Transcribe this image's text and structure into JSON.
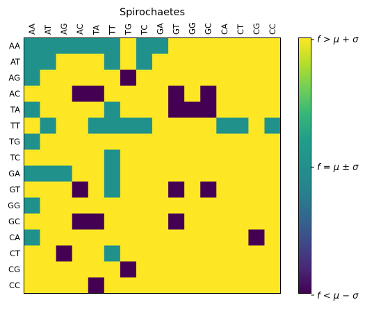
{
  "chart_data": {
    "type": "heatmap",
    "title": "Spirochaetes",
    "x_labels": [
      "AA",
      "AT",
      "AG",
      "AC",
      "TA",
      "TT",
      "TG",
      "TC",
      "GA",
      "GT",
      "GG",
      "GC",
      "CA",
      "CT",
      "CG",
      "CC"
    ],
    "y_labels": [
      "AA",
      "AT",
      "AG",
      "AC",
      "TA",
      "TT",
      "TG",
      "TC",
      "GA",
      "GT",
      "GG",
      "GC",
      "CA",
      "CT",
      "CG",
      "CC"
    ],
    "levels": {
      "low": 0,
      "mid": 1,
      "high": 2
    },
    "values": [
      [
        1,
        1,
        1,
        1,
        1,
        1,
        2,
        1,
        1,
        2,
        2,
        2,
        2,
        2,
        2,
        2
      ],
      [
        1,
        1,
        2,
        2,
        2,
        1,
        2,
        1,
        2,
        2,
        2,
        2,
        2,
        2,
        2,
        2
      ],
      [
        1,
        2,
        2,
        2,
        2,
        2,
        0,
        2,
        2,
        2,
        2,
        2,
        2,
        2,
        2,
        2
      ],
      [
        2,
        2,
        2,
        0,
        0,
        2,
        2,
        2,
        2,
        0,
        2,
        0,
        2,
        2,
        2,
        2
      ],
      [
        1,
        2,
        2,
        2,
        2,
        1,
        2,
        2,
        2,
        0,
        0,
        0,
        2,
        2,
        2,
        2
      ],
      [
        2,
        1,
        2,
        2,
        1,
        1,
        1,
        1,
        2,
        2,
        2,
        2,
        1,
        1,
        2,
        1
      ],
      [
        1,
        2,
        2,
        2,
        2,
        2,
        2,
        2,
        2,
        2,
        2,
        2,
        2,
        2,
        2,
        2
      ],
      [
        2,
        2,
        2,
        2,
        2,
        1,
        2,
        2,
        2,
        2,
        2,
        2,
        2,
        2,
        2,
        2
      ],
      [
        1,
        1,
        1,
        2,
        2,
        1,
        2,
        2,
        2,
        2,
        2,
        2,
        2,
        2,
        2,
        2
      ],
      [
        2,
        2,
        2,
        0,
        2,
        1,
        2,
        2,
        2,
        0,
        2,
        0,
        2,
        2,
        2,
        2
      ],
      [
        1,
        2,
        2,
        2,
        2,
        2,
        2,
        2,
        2,
        2,
        2,
        2,
        2,
        2,
        2,
        2
      ],
      [
        2,
        2,
        2,
        0,
        0,
        2,
        2,
        2,
        2,
        0,
        2,
        2,
        2,
        2,
        2,
        2
      ],
      [
        1,
        2,
        2,
        2,
        2,
        2,
        2,
        2,
        2,
        2,
        2,
        2,
        2,
        2,
        0,
        2
      ],
      [
        2,
        2,
        0,
        2,
        2,
        1,
        2,
        2,
        2,
        2,
        2,
        2,
        2,
        2,
        2,
        2
      ],
      [
        2,
        2,
        2,
        2,
        2,
        2,
        0,
        2,
        2,
        2,
        2,
        2,
        2,
        2,
        2,
        2
      ],
      [
        2,
        2,
        2,
        2,
        0,
        2,
        2,
        2,
        2,
        2,
        2,
        2,
        2,
        2,
        2,
        2
      ]
    ],
    "colorbar": {
      "high_label": "f > μ + σ",
      "mid_label": "f = μ ± σ",
      "low_label": "f < μ − σ"
    },
    "colors": {
      "low": "#440154",
      "mid": "#21918c",
      "high": "#fde725"
    }
  }
}
